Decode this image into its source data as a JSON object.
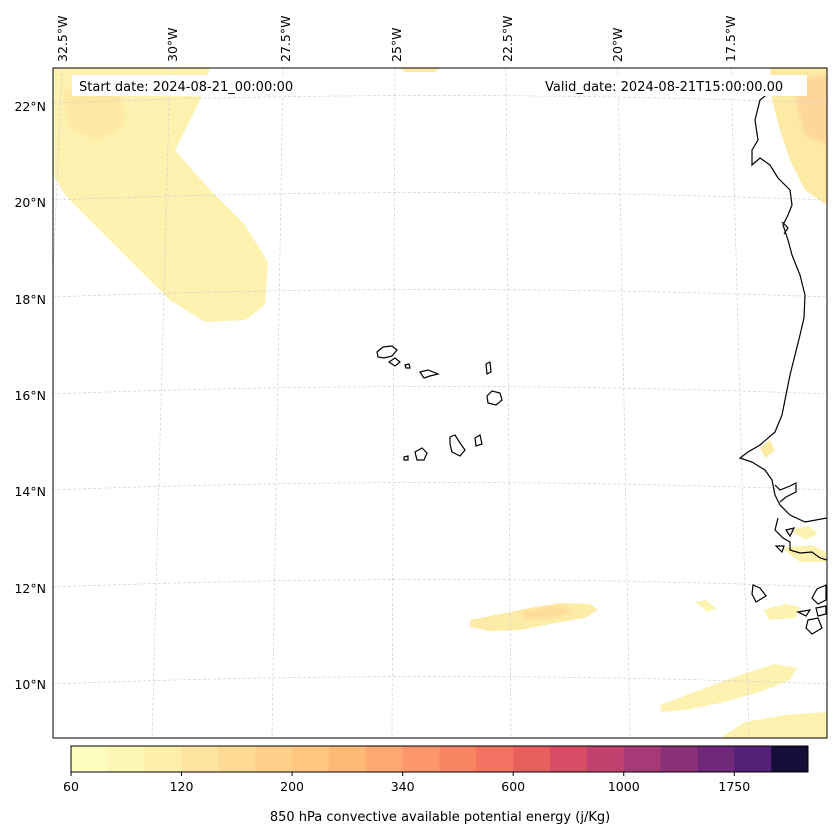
{
  "map": {
    "start_date": "Start date: 2024-08-21_00:00:00",
    "valid_date": "Valid_date: 2024-08-21T15:00:00.00",
    "lon_labels": [
      "32.5°W",
      "30°W",
      "27.5°W",
      "25°W",
      "22.5°W",
      "20°W",
      "17.5°W"
    ],
    "lat_labels": [
      "22°N",
      "20°N",
      "18°N",
      "16°N",
      "14°N",
      "12°N",
      "10°N"
    ]
  },
  "colorbar": {
    "label": "850 hPa convective available potential energy (j/Kg)",
    "tick_labels": [
      "60",
      "120",
      "200",
      "340",
      "600",
      "1000",
      "1750"
    ],
    "colors": [
      "#fcfdbf",
      "#fdf6b5",
      "#fdeeaa",
      "#fee59f",
      "#fedb95",
      "#fed08a",
      "#fec681",
      "#feb878",
      "#fda870",
      "#fc976b",
      "#fa8565",
      "#f47261",
      "#e8605e",
      "#d84d66",
      "#c1416f",
      "#a63a76",
      "#8b3179",
      "#6f2879",
      "#541f76",
      "#150e38"
    ]
  }
}
